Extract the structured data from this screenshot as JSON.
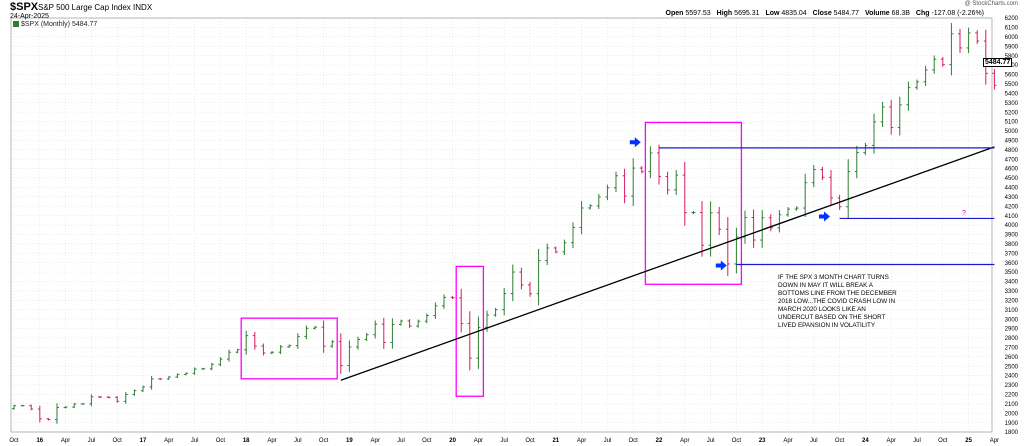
{
  "header": {
    "ticker": "$SPX",
    "description": "S&P 500 Large Cap Index",
    "exchange": "INDX",
    "date": "24-Apr-2025",
    "legend": "$SPX (Monthly) 5484.77",
    "brand": "@ StockCharts.com",
    "open_label": "Open",
    "open_value": "5597.53",
    "high_label": "High",
    "high_value": "5695.31",
    "low_label": "Low",
    "low_value": "4835.04",
    "close_label": "Close",
    "close_value": "5484.77",
    "volume_label": "Volume",
    "volume_value": "68.3B",
    "chg_label": "Chg",
    "chg_value": "-127.08 (-2.26%)"
  },
  "annotation": {
    "note": "IF THE SPX 3 MONTH CHART TURNS DOWN IN MAY IT WILL BREAK A BOTTOMS LINE FROM THE DECEMBER 2018 LOW...THE COVID CRASH LOW IN MARCH 2020 LOOKS LIKE AN UNDERCUT BASED ON THE SHORT LIVED EPANSION IN VOLATILITY",
    "question_mark": "?"
  },
  "colors": {
    "up": "#2e7d32",
    "down": "#d81b60",
    "box": "#ff00ff",
    "support": "#1a1acc",
    "trend": "#000000",
    "grid": "#cfcfcf",
    "arrow": "#0033ff"
  },
  "chart_data": {
    "type": "ohlc",
    "title": "$SPX (Monthly)",
    "last_value": "5484.77",
    "ylim": [
      1800,
      6200
    ],
    "y_ticks": [
      1800,
      1900,
      2000,
      2100,
      2200,
      2300,
      2400,
      2500,
      2600,
      2700,
      2800,
      2900,
      3000,
      3100,
      3200,
      3300,
      3400,
      3500,
      3600,
      3700,
      3800,
      3900,
      4000,
      4100,
      4200,
      4300,
      4400,
      4500,
      4600,
      4700,
      4800,
      4900,
      5000,
      5100,
      5200,
      5300,
      5400,
      5500,
      5600,
      5700,
      5800,
      5900,
      6000,
      6100,
      6200
    ],
    "x_labels": [
      "Oct",
      "16",
      "Apr",
      "Jul",
      "Oct",
      "17",
      "Apr",
      "Jul",
      "Oct",
      "18",
      "Apr",
      "Jul",
      "Oct",
      "19",
      "Apr",
      "Jul",
      "Oct",
      "20",
      "Apr",
      "Jul",
      "Oct",
      "21",
      "Apr",
      "Jul",
      "Oct",
      "22",
      "Apr",
      "Jul",
      "Oct",
      "23",
      "Apr",
      "Jul",
      "Oct",
      "24",
      "Apr",
      "Jul",
      "Oct",
      "25",
      "Apr"
    ],
    "start_month": "2015-10",
    "closes": [
      2079,
      2080,
      2044,
      1940,
      1932,
      2060,
      2065,
      2097,
      2099,
      2174,
      2171,
      2168,
      2126,
      2199,
      2239,
      2279,
      2364,
      2363,
      2384,
      2412,
      2424,
      2470,
      2472,
      2519,
      2575,
      2648,
      2674,
      2824,
      2714,
      2640,
      2648,
      2705,
      2718,
      2816,
      2902,
      2914,
      2712,
      2760,
      2507,
      2704,
      2784,
      2834,
      2946,
      2752,
      2942,
      2980,
      2926,
      2977,
      3038,
      3141,
      3231,
      3226,
      2954,
      2585,
      2912,
      3044,
      3100,
      3271,
      3500,
      3363,
      3270,
      3622,
      3756,
      3714,
      3811,
      3973,
      4181,
      4204,
      4298,
      4395,
      4523,
      4307,
      4605,
      4567,
      4766,
      4516,
      4374,
      4530,
      4132,
      4132,
      3785,
      4130,
      3955,
      3586,
      3872,
      4080,
      3840,
      4077,
      3970,
      4109,
      4169,
      4180,
      4450,
      4589,
      4507,
      4288,
      4194,
      4568,
      4770,
      4846,
      5096,
      5254,
      5036,
      5278,
      5460,
      5522,
      5648,
      5762,
      5705,
      6032,
      5882,
      6041,
      5955,
      5612,
      5485
    ],
    "events": [
      {
        "label": "2018 top box",
        "x_range": [
          "2018-01",
          "2018-11"
        ],
        "y_range": [
          2365,
          3010
        ]
      },
      {
        "label": "COVID crash box",
        "x_range": [
          "2020-02",
          "2020-04"
        ],
        "y_range": [
          2180,
          3560
        ]
      },
      {
        "label": "2022 bear market box",
        "x_range": [
          "2021-12",
          "2022-10"
        ],
        "y_range": [
          3370,
          5090
        ]
      }
    ],
    "trendline": {
      "from": [
        "2018-12",
        2350
      ],
      "to": [
        "2025-04",
        4830
      ]
    },
    "support_lines": [
      {
        "from": "2022-01",
        "to": "2025-04",
        "value": 4820
      },
      {
        "from": "2023-10",
        "to": "2025-04",
        "value": 4070
      },
      {
        "from": "2022-10",
        "to": "2025-04",
        "value": 3580
      }
    ],
    "arrows": [
      {
        "at": "2021-11",
        "value": 4880
      },
      {
        "at": "2022-09",
        "value": 3570
      },
      {
        "at": "2023-09",
        "value": 4090
      }
    ]
  }
}
